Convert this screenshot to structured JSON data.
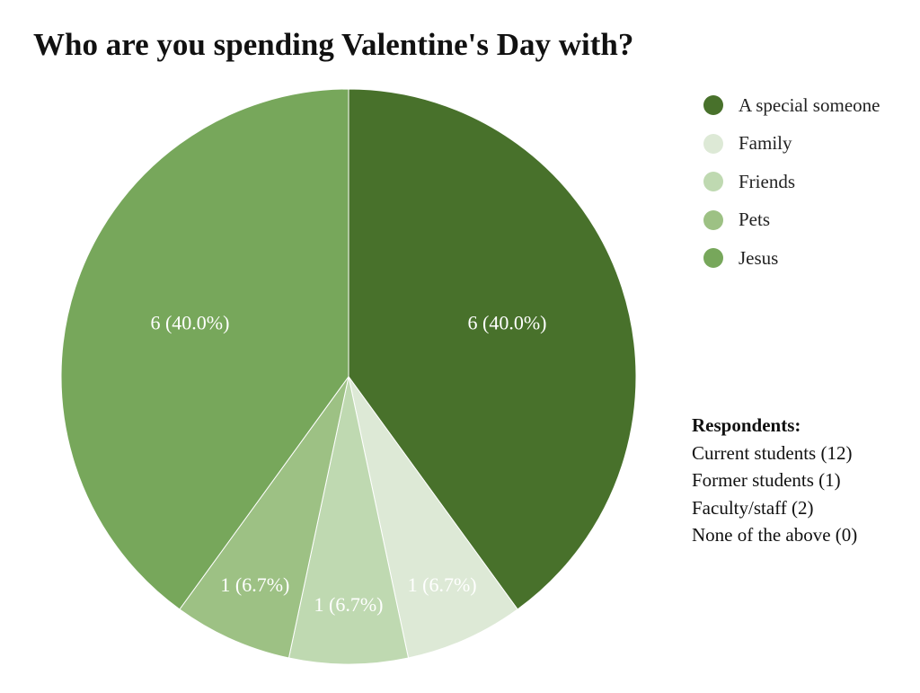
{
  "chart_data": {
    "type": "pie",
    "title": "Who are you spending Valentine's Day with?",
    "slices": [
      {
        "name": "A special someone",
        "value": 6,
        "label": "6 (40.0%)",
        "color": "#48712b"
      },
      {
        "name": "Family",
        "value": 1,
        "label": "1 (6.7%)",
        "color": "#dde9d6"
      },
      {
        "name": "Friends",
        "value": 1,
        "label": "1 (6.7%)",
        "color": "#bfd9b1"
      },
      {
        "name": "Pets",
        "value": 1,
        "label": "1 (6.7%)",
        "color": "#9dc184"
      },
      {
        "name": "Jesus",
        "value": 6,
        "label": "6 (40.0%)",
        "color": "#77a75b"
      }
    ],
    "legend_position": "top-right"
  },
  "respondents": {
    "title": "Respondents:",
    "lines": [
      "Current students (12)",
      "Former students (1)",
      "Faculty/staff (2)",
      "None of the above (0)"
    ]
  }
}
